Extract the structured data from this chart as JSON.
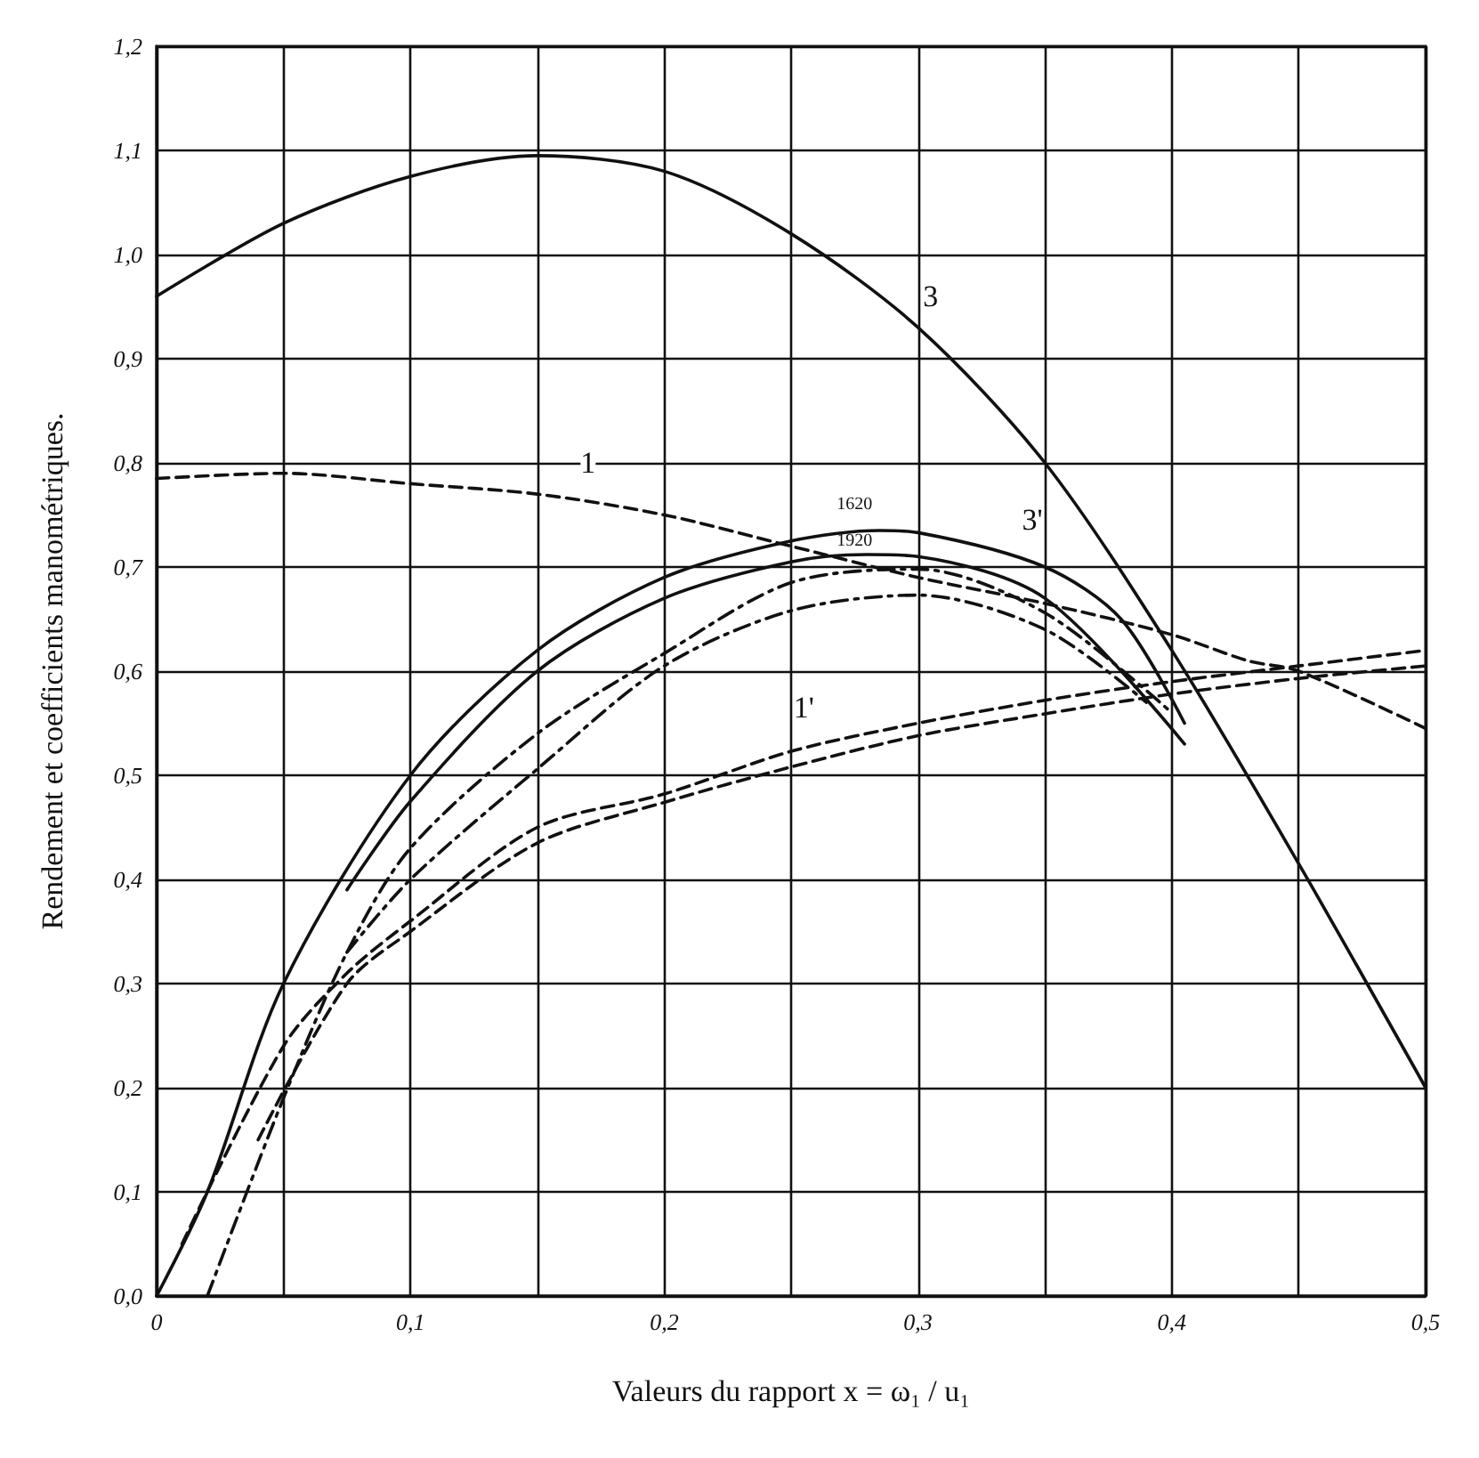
{
  "chart_data": {
    "type": "line",
    "xlabel": "Valeurs du rapport x = ω₁ / u₁",
    "ylabel": "Rendement et coefficients manométriques.",
    "xlim": [
      0,
      0.5
    ],
    "ylim": [
      0,
      1.2
    ],
    "xticks": [
      {
        "value": 0,
        "label": "0"
      },
      {
        "value": 0.05,
        "label": null
      },
      {
        "value": 0.1,
        "label": "0,1"
      },
      {
        "value": 0.15,
        "label": null
      },
      {
        "value": 0.2,
        "label": "0,2"
      },
      {
        "value": 0.25,
        "label": null
      },
      {
        "value": 0.3,
        "label": "0,3"
      },
      {
        "value": 0.35,
        "label": null
      },
      {
        "value": 0.4,
        "label": "0,4"
      },
      {
        "value": 0.45,
        "label": null
      },
      {
        "value": 0.5,
        "label": "0,5"
      }
    ],
    "yticks": [
      {
        "value": 0,
        "label": "0,0"
      },
      {
        "value": 0.1,
        "label": "0,1"
      },
      {
        "value": 0.2,
        "label": "0,2"
      },
      {
        "value": 0.3,
        "label": "0,3"
      },
      {
        "value": 0.4,
        "label": "0,4"
      },
      {
        "value": 0.5,
        "label": "0,5"
      },
      {
        "value": 0.6,
        "label": "0,6"
      },
      {
        "value": 0.7,
        "label": "0,7"
      },
      {
        "value": 0.8,
        "label": "0,8"
      },
      {
        "value": 0.9,
        "label": "0,9"
      },
      {
        "value": 1.0,
        "label": "1,0"
      },
      {
        "value": 1.1,
        "label": "1,1"
      },
      {
        "value": 1.2,
        "label": "1,2"
      }
    ],
    "grid": true,
    "marker": "none",
    "series": [
      {
        "color": "#111111",
        "line_style": "solid",
        "x": [
          0,
          0.05,
          0.1,
          0.15,
          0.2,
          0.25,
          0.3,
          0.35,
          0.4,
          0.45,
          0.5
        ],
        "values": [
          0.96,
          1.03,
          1.075,
          1.095,
          1.08,
          1.02,
          0.93,
          0.8,
          0.62,
          0.415,
          0.2
        ]
      },
      {
        "color": "#111111",
        "line_style": "dashed",
        "x": [
          0,
          0.05,
          0.1,
          0.15,
          0.2,
          0.25,
          0.3,
          0.35,
          0.4,
          0.43,
          0.45,
          0.5
        ],
        "values": [
          0.785,
          0.79,
          0.78,
          0.77,
          0.75,
          0.72,
          0.69,
          0.665,
          0.635,
          0.61,
          0.6,
          0.545
        ]
      },
      {
        "color": "#111111",
        "line_style": "solid",
        "x": [
          0,
          0.02,
          0.05,
          0.1,
          0.15,
          0.2,
          0.25,
          0.285,
          0.3,
          0.35,
          0.38,
          0.405
        ],
        "values": [
          0,
          0.1,
          0.3,
          0.5,
          0.62,
          0.69,
          0.725,
          0.735,
          0.733,
          0.7,
          0.65,
          0.55
        ]
      },
      {
        "color": "#111111",
        "line_style": "solid",
        "x": [
          0.075,
          0.1,
          0.15,
          0.2,
          0.25,
          0.28,
          0.3,
          0.35,
          0.405
        ],
        "values": [
          0.39,
          0.475,
          0.6,
          0.67,
          0.705,
          0.712,
          0.71,
          0.67,
          0.53
        ]
      },
      {
        "color": "#111111",
        "line_style": "dashdot",
        "x": [
          0.02,
          0.05,
          0.075,
          0.1,
          0.15,
          0.2,
          0.25,
          0.3,
          0.35,
          0.4
        ],
        "values": [
          0,
          0.19,
          0.33,
          0.43,
          0.54,
          0.617,
          0.685,
          0.698,
          0.656,
          0.56
        ]
      },
      {
        "color": "#111111",
        "line_style": "dashdot",
        "x": [
          0.075,
          0.1,
          0.15,
          0.2,
          0.25,
          0.3,
          0.35,
          0.39
        ],
        "values": [
          0.33,
          0.4,
          0.506,
          0.605,
          0.658,
          0.673,
          0.64,
          0.57
        ]
      },
      {
        "color": "#111111",
        "line_style": "dashed",
        "x": [
          0.01,
          0.05,
          0.075,
          0.1,
          0.15,
          0.2,
          0.25,
          0.3,
          0.35,
          0.4,
          0.45,
          0.5
        ],
        "values": [
          0.05,
          0.24,
          0.31,
          0.36,
          0.45,
          0.482,
          0.523,
          0.55,
          0.572,
          0.59,
          0.605,
          0.62
        ]
      },
      {
        "color": "#111111",
        "line_style": "dashed",
        "x": [
          0.04,
          0.075,
          0.1,
          0.15,
          0.2,
          0.25,
          0.3,
          0.35,
          0.4,
          0.45,
          0.5
        ],
        "values": [
          0.15,
          0.3,
          0.35,
          0.435,
          0.474,
          0.508,
          0.538,
          0.559,
          0.578,
          0.593,
          0.605
        ]
      }
    ],
    "annotations": [
      {
        "text": "3",
        "x": 0.305,
        "y": 0.96
      },
      {
        "text": "1",
        "x": 0.17,
        "y": 0.8
      },
      {
        "text": "3'",
        "x": 0.345,
        "y": 0.745
      },
      {
        "text": "1'",
        "x": 0.255,
        "y": 0.565
      },
      {
        "text": "1620",
        "x": 0.275,
        "y": 0.76
      },
      {
        "text": "1920",
        "x": 0.275,
        "y": 0.725
      }
    ]
  }
}
